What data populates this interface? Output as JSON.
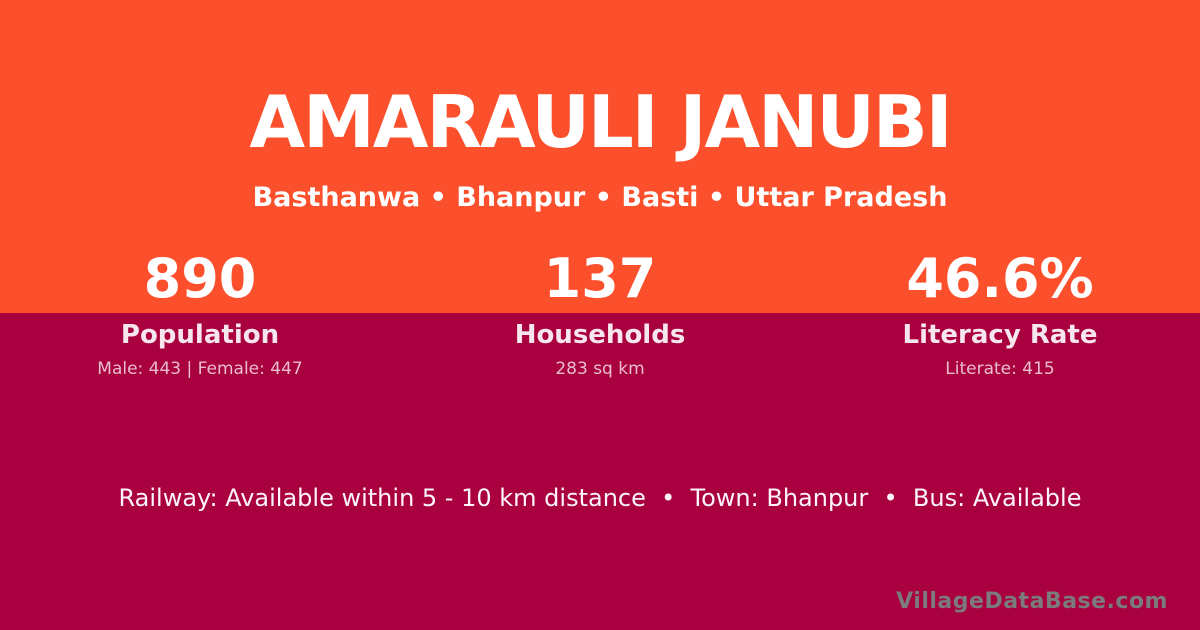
{
  "colors": {
    "top_band": "#fc502d",
    "bottom_band": "#a90040",
    "text": "#ffffff",
    "watermark": "#7b7b7b"
  },
  "header": {
    "title": "AMARAULI JANUBI",
    "subtitle": "Basthanwa • Bhanpur • Basti • Uttar Pradesh"
  },
  "stats": [
    {
      "value": "890",
      "label": "Population",
      "detail": "Male: 443 | Female: 447"
    },
    {
      "value": "137",
      "label": "Households",
      "detail": "283 sq km"
    },
    {
      "value": "46.6%",
      "label": "Literacy Rate",
      "detail": "Literate: 415"
    }
  ],
  "footer": {
    "info": "Railway: Available within 5 - 10 km distance  •  Town: Bhanpur  •  Bus: Available",
    "watermark": "VillageDataBase.com"
  }
}
